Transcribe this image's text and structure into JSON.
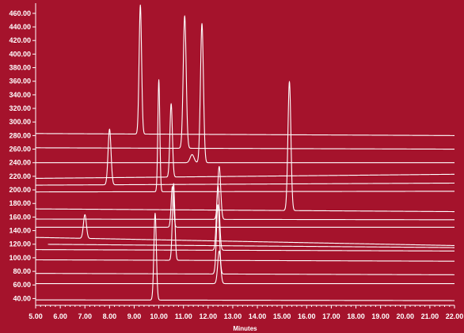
{
  "chart_data": {
    "type": "line",
    "title": "",
    "xlabel": "Minutes",
    "ylabel": "",
    "xlim": [
      5,
      22
    ],
    "ylim": [
      30,
      475
    ],
    "x_ticks": [
      5,
      6,
      7,
      8,
      9,
      10,
      11,
      12,
      13,
      14,
      15,
      16,
      17,
      18,
      19,
      20,
      21,
      22
    ],
    "x_tick_labels": [
      "5.00",
      "6.00",
      "7.00",
      "8.00",
      "9.00",
      "10.00",
      "11.00",
      "12.00",
      "13.00",
      "14.00",
      "15.00",
      "16.00",
      "17.00",
      "18.00",
      "19.00",
      "20.00",
      "21.00",
      "22.00"
    ],
    "y_ticks": [
      40,
      60,
      80,
      100,
      120,
      140,
      160,
      180,
      200,
      220,
      240,
      260,
      280,
      300,
      320,
      340,
      360,
      380,
      400,
      420,
      440,
      460
    ],
    "y_tick_labels": [
      "40.00",
      "60.00",
      "80.00",
      "100.00",
      "120.00",
      "140.00",
      "160.00",
      "180.00",
      "200.00",
      "220.00",
      "240.00",
      "260.00",
      "280.00",
      "300.00",
      "320.00",
      "340.00",
      "360.00",
      "380.00",
      "400.00",
      "420.00",
      "440.00",
      "460.00"
    ],
    "grid": false,
    "legend": "none",
    "line_color": "#ffffff",
    "background_color": "#a5132c",
    "series": [
      {
        "start_x": 5.0,
        "baseline_start": 283,
        "baseline_end": 280,
        "peaks": [
          {
            "x": 9.25,
            "height": 190,
            "width": 0.05
          }
        ]
      },
      {
        "start_x": 5.0,
        "baseline_start": 262,
        "baseline_end": 260,
        "peaks": [
          {
            "x": 11.05,
            "height": 195,
            "width": 0.06
          }
        ]
      },
      {
        "start_x": 5.0,
        "baseline_start": 240,
        "baseline_end": 240,
        "peaks": [
          {
            "x": 11.75,
            "height": 205,
            "width": 0.06
          },
          {
            "x": 11.35,
            "height": 12,
            "width": 0.08
          }
        ]
      },
      {
        "start_x": 5.0,
        "baseline_start": 217,
        "baseline_end": 223,
        "peaks": [
          {
            "x": 10.5,
            "height": 108,
            "width": 0.05
          }
        ]
      },
      {
        "start_x": 5.0,
        "baseline_start": 207,
        "baseline_end": 210,
        "peaks": [
          {
            "x": 8.0,
            "height": 82,
            "width": 0.06
          }
        ]
      },
      {
        "start_x": 5.0,
        "baseline_start": 197,
        "baseline_end": 198,
        "peaks": [
          {
            "x": 10.0,
            "height": 165,
            "width": 0.04
          }
        ]
      },
      {
        "start_x": 5.0,
        "baseline_start": 172,
        "baseline_end": 168,
        "peaks": [
          {
            "x": 15.3,
            "height": 190,
            "width": 0.06
          }
        ]
      },
      {
        "start_x": 5.0,
        "baseline_start": 157,
        "baseline_end": 156,
        "peaks": [
          {
            "x": 12.45,
            "height": 78,
            "width": 0.06
          }
        ]
      },
      {
        "start_x": 5.0,
        "baseline_start": 145,
        "baseline_end": 145,
        "peaks": [
          {
            "x": 10.55,
            "height": 60,
            "width": 0.05
          }
        ]
      },
      {
        "start_x": 5.0,
        "baseline_start": 130,
        "baseline_end": 118,
        "peaks": [
          {
            "x": 7.0,
            "height": 35,
            "width": 0.06
          }
        ]
      },
      {
        "start_x": 5.5,
        "baseline_start": 120,
        "baseline_end": 115,
        "peaks": [
          {
            "x": 12.45,
            "height": 0,
            "width": 0.06
          }
        ]
      },
      {
        "start_x": 5.0,
        "baseline_start": 112,
        "baseline_end": 110,
        "peaks": [
          {
            "x": 12.4,
            "height": 95,
            "width": 0.06
          }
        ]
      },
      {
        "start_x": 5.0,
        "baseline_start": 97,
        "baseline_end": 95,
        "peaks": [
          {
            "x": 10.6,
            "height": 113,
            "width": 0.05
          }
        ]
      },
      {
        "start_x": 5.0,
        "baseline_start": 77,
        "baseline_end": 75,
        "peaks": [
          {
            "x": 12.4,
            "height": 102,
            "width": 0.06
          }
        ]
      },
      {
        "start_x": 5.0,
        "baseline_start": 62,
        "baseline_end": 62,
        "peaks": [
          {
            "x": 12.45,
            "height": 48,
            "width": 0.06
          }
        ]
      },
      {
        "start_x": 5.0,
        "baseline_start": 38,
        "baseline_end": 37,
        "peaks": [
          {
            "x": 9.85,
            "height": 128,
            "width": 0.05
          }
        ]
      }
    ]
  }
}
